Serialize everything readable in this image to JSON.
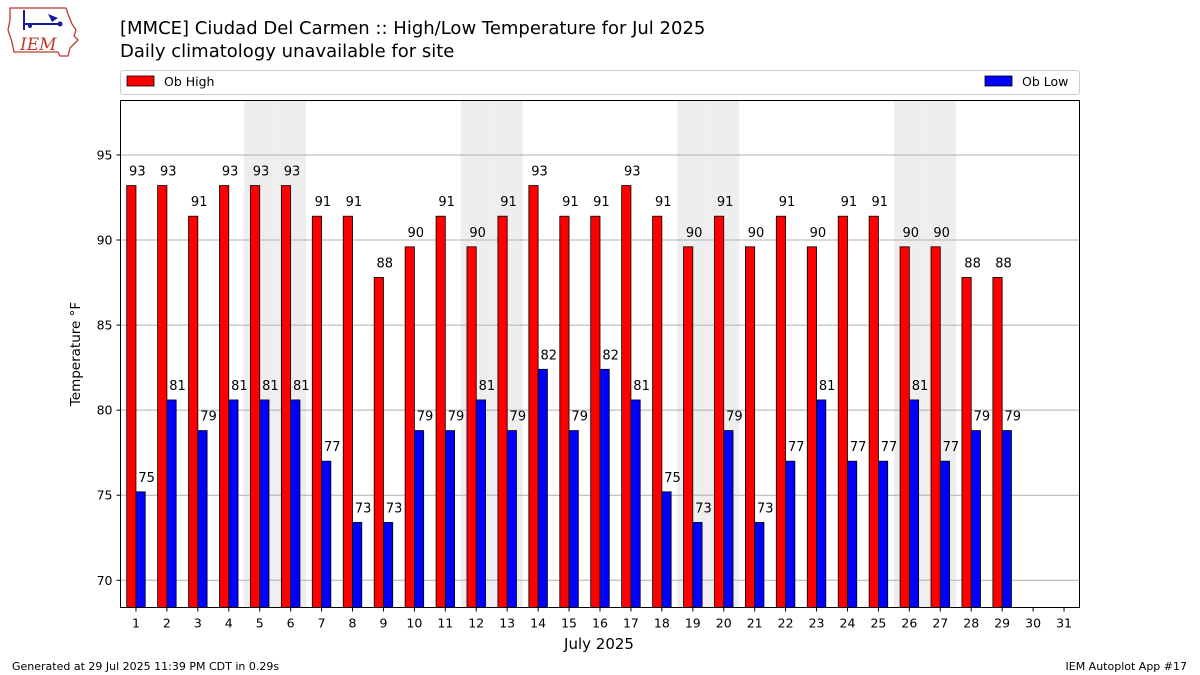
{
  "chart_data": {
    "type": "bar",
    "title": "[MMCE] Ciudad Del Carmen :: High/Low Temperature for Jul 2025",
    "subtitle": "Daily climatology unavailable for site",
    "xlabel": "July 2025",
    "ylabel": "Temperature °F",
    "ylim": [
      68.4,
      98.2
    ],
    "yticks": [
      70,
      75,
      80,
      85,
      90,
      95
    ],
    "grid": true,
    "legend_placement": "top",
    "categories": [
      "1",
      "2",
      "3",
      "4",
      "5",
      "6",
      "7",
      "8",
      "9",
      "10",
      "11",
      "12",
      "13",
      "14",
      "15",
      "16",
      "17",
      "18",
      "19",
      "20",
      "21",
      "22",
      "23",
      "24",
      "25",
      "26",
      "27",
      "28",
      "29",
      "30",
      "31"
    ],
    "weekend_days": [
      5,
      6,
      12,
      13,
      19,
      20,
      26,
      27
    ],
    "series": [
      {
        "name": "Ob High",
        "color": "#ff0000",
        "values": [
          93.2,
          93.2,
          91.4,
          93.2,
          93.2,
          93.2,
          91.4,
          91.4,
          87.8,
          89.6,
          91.4,
          89.6,
          91.4,
          93.2,
          91.4,
          91.4,
          93.2,
          91.4,
          89.6,
          91.4,
          89.6,
          91.4,
          89.6,
          91.4,
          91.4,
          89.6,
          89.6,
          87.8,
          87.8,
          null,
          null
        ],
        "labels": [
          "93",
          "93",
          "91",
          "93",
          "93",
          "93",
          "91",
          "91",
          "88",
          "90",
          "91",
          "90",
          "91",
          "93",
          "91",
          "91",
          "93",
          "91",
          "90",
          "91",
          "90",
          "91",
          "90",
          "91",
          "91",
          "90",
          "90",
          "88",
          "88",
          "",
          ""
        ]
      },
      {
        "name": "Ob Low",
        "color": "#0000ff",
        "values": [
          75.2,
          80.6,
          78.8,
          80.6,
          80.6,
          80.6,
          77.0,
          73.4,
          73.4,
          78.8,
          78.8,
          80.6,
          78.8,
          82.4,
          78.8,
          82.4,
          80.6,
          75.2,
          73.4,
          78.8,
          73.4,
          77.0,
          80.6,
          77.0,
          77.0,
          80.6,
          77.0,
          78.8,
          78.8,
          null,
          null
        ],
        "labels": [
          "75",
          "81",
          "79",
          "81",
          "81",
          "81",
          "77",
          "73",
          "73",
          "79",
          "79",
          "81",
          "79",
          "82",
          "79",
          "82",
          "81",
          "75",
          "73",
          "79",
          "73",
          "77",
          "81",
          "77",
          "77",
          "81",
          "77",
          "79",
          "79",
          "",
          ""
        ]
      }
    ]
  },
  "logo": {
    "text": "IEM"
  },
  "footer": {
    "generated": "Generated at 29 Jul 2025 11:39 PM CDT in 0.29s",
    "app": "IEM Autoplot App #17"
  }
}
